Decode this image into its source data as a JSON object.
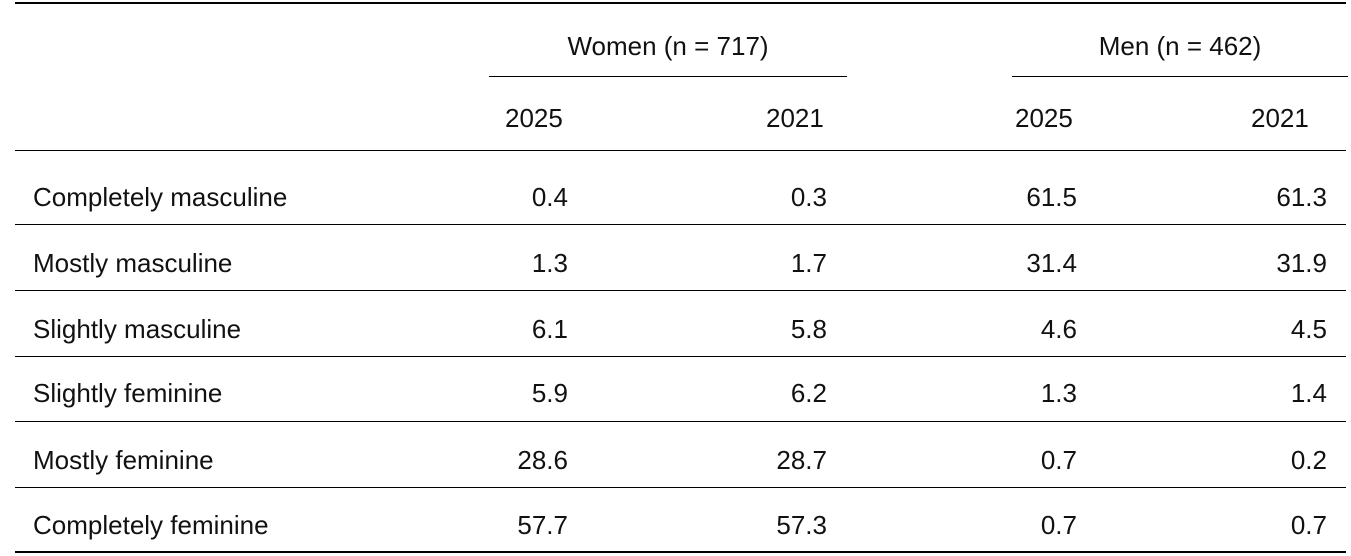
{
  "table": {
    "groups": [
      {
        "label": "Women (n = 717)"
      },
      {
        "label": "Men (n = 462)"
      }
    ],
    "years": [
      "2025",
      "2021",
      "2025",
      "2021"
    ],
    "rows": [
      {
        "label": "Completely masculine",
        "values": [
          "0.4",
          "0.3",
          "61.5",
          "61.3"
        ]
      },
      {
        "label": "Mostly masculine",
        "values": [
          "1.3",
          "1.7",
          "31.4",
          "31.9"
        ]
      },
      {
        "label": "Slightly masculine",
        "values": [
          "6.1",
          "5.8",
          "4.6",
          "4.5"
        ]
      },
      {
        "label": "Slightly feminine",
        "values": [
          "5.9",
          "6.2",
          "1.3",
          "1.4"
        ]
      },
      {
        "label": "Mostly feminine",
        "values": [
          "28.6",
          "28.7",
          "0.7",
          "0.2"
        ]
      },
      {
        "label": "Completely feminine",
        "values": [
          "57.7",
          "57.3",
          "0.7",
          "0.7"
        ]
      }
    ]
  }
}
